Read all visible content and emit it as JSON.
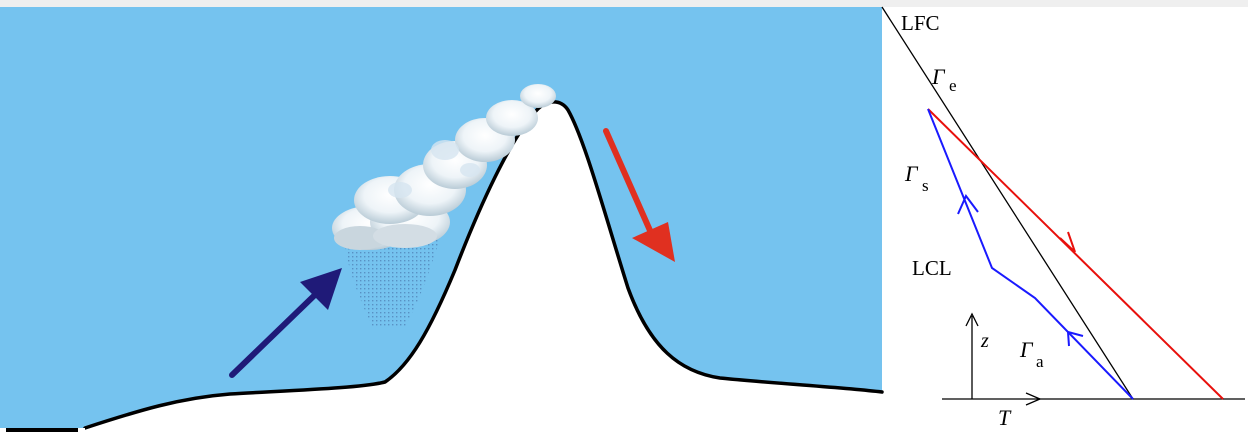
{
  "colors": {
    "sky": "#75c3ef",
    "mountain": "#ffffff",
    "outline": "#000000",
    "upslope_arrow": "#1f1a78",
    "downslope_arrow": "#e03020",
    "ascent_line": "#1a1aff",
    "descent_line": "#e8100c",
    "environment_line": "#000000",
    "cloud": "#f4f8fb",
    "rain": "#5a88b8"
  },
  "labels": {
    "lfc": "LFC",
    "gamma_e_sym": "Γ",
    "gamma_e_sub": "e",
    "gamma_s_sym": "Γ",
    "gamma_s_sub": "s",
    "lcl": "LCL",
    "gamma_a_sym": "Γ",
    "gamma_a_sub": "a",
    "z_axis": "z",
    "t_axis": "T"
  }
}
